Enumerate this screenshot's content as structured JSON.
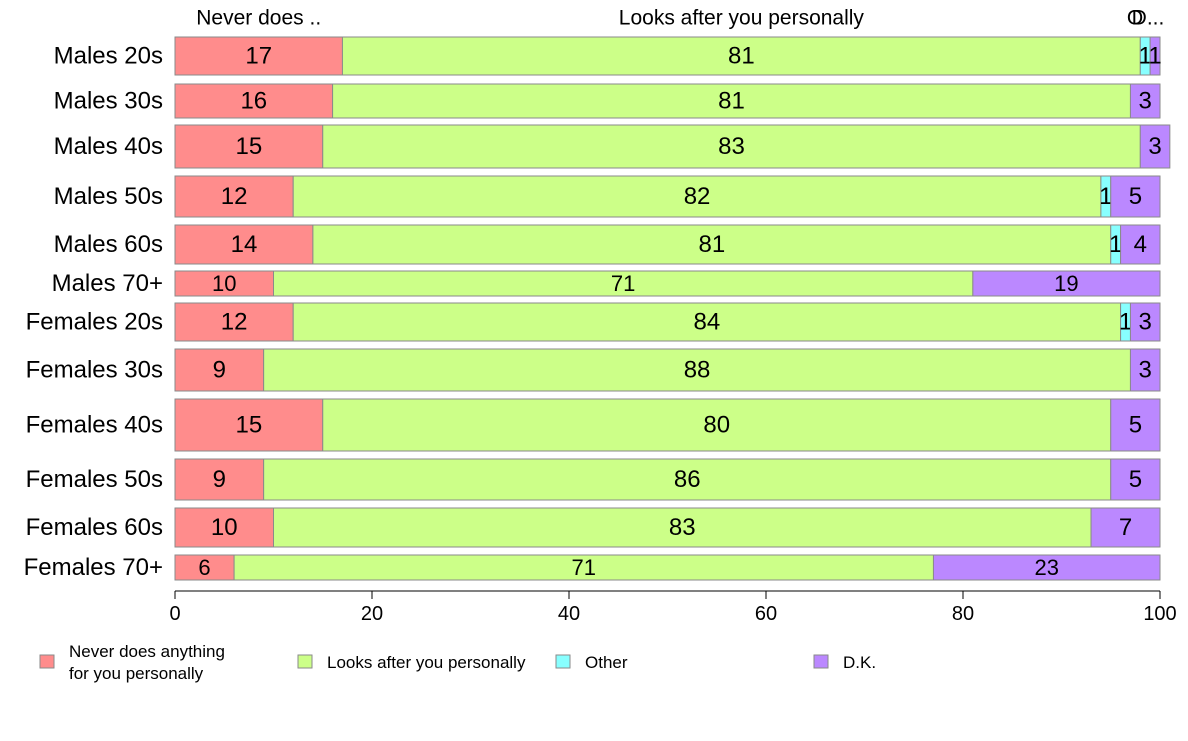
{
  "chart_data": {
    "type": "bar",
    "orientation": "horizontal",
    "stacked": true,
    "categories": [
      "Males 20s",
      "Males 30s",
      "Males 40s",
      "Males 50s",
      "Males 60s",
      "Males 70+",
      "Females 20s",
      "Females 30s",
      "Females 40s",
      "Females 50s",
      "Females 60s",
      "Females 70+"
    ],
    "series": [
      {
        "name": "Never does anything for you personally",
        "color": "#ff8c8c",
        "values": [
          17,
          16,
          15,
          12,
          14,
          10,
          12,
          9,
          15,
          9,
          10,
          6
        ]
      },
      {
        "name": "Looks after you personally",
        "color": "#ccff88",
        "values": [
          81,
          81,
          83,
          82,
          81,
          71,
          84,
          88,
          80,
          86,
          83,
          71
        ]
      },
      {
        "name": "Other",
        "color": "#88ffff",
        "values": [
          1,
          0,
          0,
          1,
          1,
          0,
          1,
          0,
          0,
          0,
          0,
          0
        ]
      },
      {
        "name": "D.K.",
        "color": "#bb88ff",
        "values": [
          1,
          3,
          3,
          5,
          4,
          19,
          3,
          3,
          5,
          5,
          7,
          23
        ]
      }
    ],
    "legend_labels": [
      "Never does anything\nfor you personally",
      "Looks after you personally",
      "Other",
      "D.K."
    ],
    "top_labels": [
      "Never does ..",
      "Looks after you personally",
      "O",
      "D..."
    ],
    "xlim": [
      0,
      100
    ],
    "xticks": [
      0,
      20,
      40,
      60,
      80,
      100
    ],
    "grid": false,
    "legend_position": "bottom",
    "title": "",
    "xlabel": "",
    "ylabel": ""
  }
}
